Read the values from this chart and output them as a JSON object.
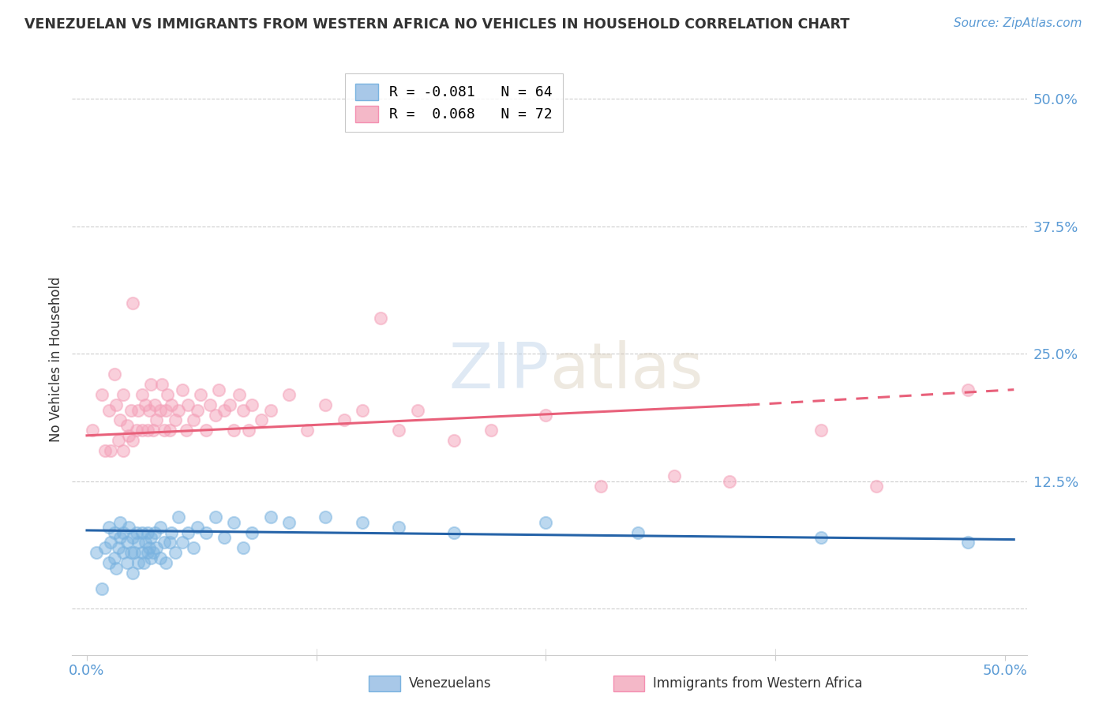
{
  "title": "VENEZUELAN VS IMMIGRANTS FROM WESTERN AFRICA NO VEHICLES IN HOUSEHOLD CORRELATION CHART",
  "source": "Source: ZipAtlas.com",
  "ylabel": "No Vehicles in Household",
  "ytick_labels": [
    "",
    "12.5%",
    "25.0%",
    "37.5%",
    "50.0%"
  ],
  "ytick_values": [
    0.0,
    0.125,
    0.25,
    0.375,
    0.5
  ],
  "xlim": [
    -0.008,
    0.512
  ],
  "ylim": [
    -0.045,
    0.535
  ],
  "watermark_text": "ZIPatlas",
  "blue_scatter_color": "#7ab3e0",
  "pink_scatter_color": "#f4a0b8",
  "blue_line_color": "#2563a8",
  "pink_line_color": "#e8607a",
  "blue_legend_color": "#a8c8e8",
  "pink_legend_color": "#f4b8c8",
  "legend_R1": "R = -0.081",
  "legend_N1": "N = 64",
  "legend_R2": "R =  0.068",
  "legend_N2": "N = 72",
  "venezuelan_scatter_x": [
    0.005,
    0.008,
    0.01,
    0.012,
    0.012,
    0.013,
    0.015,
    0.015,
    0.016,
    0.017,
    0.018,
    0.018,
    0.02,
    0.02,
    0.022,
    0.022,
    0.023,
    0.024,
    0.025,
    0.025,
    0.026,
    0.027,
    0.028,
    0.028,
    0.03,
    0.03,
    0.031,
    0.032,
    0.033,
    0.033,
    0.034,
    0.035,
    0.035,
    0.036,
    0.037,
    0.038,
    0.04,
    0.04,
    0.042,
    0.043,
    0.045,
    0.046,
    0.048,
    0.05,
    0.052,
    0.055,
    0.058,
    0.06,
    0.065,
    0.07,
    0.075,
    0.08,
    0.085,
    0.09,
    0.1,
    0.11,
    0.13,
    0.15,
    0.17,
    0.2,
    0.25,
    0.3,
    0.4,
    0.48
  ],
  "venezuelan_scatter_y": [
    0.055,
    0.02,
    0.06,
    0.045,
    0.08,
    0.065,
    0.05,
    0.075,
    0.04,
    0.06,
    0.07,
    0.085,
    0.055,
    0.075,
    0.045,
    0.065,
    0.08,
    0.055,
    0.035,
    0.07,
    0.055,
    0.075,
    0.045,
    0.065,
    0.055,
    0.075,
    0.045,
    0.065,
    0.055,
    0.075,
    0.06,
    0.05,
    0.07,
    0.055,
    0.075,
    0.06,
    0.05,
    0.08,
    0.065,
    0.045,
    0.065,
    0.075,
    0.055,
    0.09,
    0.065,
    0.075,
    0.06,
    0.08,
    0.075,
    0.09,
    0.07,
    0.085,
    0.06,
    0.075,
    0.09,
    0.085,
    0.09,
    0.085,
    0.08,
    0.075,
    0.085,
    0.075,
    0.07,
    0.065
  ],
  "western_africa_scatter_x": [
    0.003,
    0.008,
    0.01,
    0.012,
    0.013,
    0.015,
    0.016,
    0.017,
    0.018,
    0.02,
    0.02,
    0.022,
    0.023,
    0.024,
    0.025,
    0.025,
    0.027,
    0.028,
    0.03,
    0.03,
    0.032,
    0.033,
    0.034,
    0.035,
    0.036,
    0.037,
    0.038,
    0.04,
    0.041,
    0.042,
    0.043,
    0.044,
    0.045,
    0.046,
    0.048,
    0.05,
    0.052,
    0.054,
    0.055,
    0.058,
    0.06,
    0.062,
    0.065,
    0.067,
    0.07,
    0.072,
    0.075,
    0.078,
    0.08,
    0.083,
    0.085,
    0.088,
    0.09,
    0.095,
    0.1,
    0.11,
    0.12,
    0.13,
    0.14,
    0.15,
    0.16,
    0.17,
    0.18,
    0.2,
    0.22,
    0.25,
    0.28,
    0.32,
    0.35,
    0.4,
    0.43,
    0.48
  ],
  "western_africa_scatter_y": [
    0.175,
    0.21,
    0.155,
    0.195,
    0.155,
    0.23,
    0.2,
    0.165,
    0.185,
    0.155,
    0.21,
    0.18,
    0.17,
    0.195,
    0.3,
    0.165,
    0.175,
    0.195,
    0.175,
    0.21,
    0.2,
    0.175,
    0.195,
    0.22,
    0.175,
    0.2,
    0.185,
    0.195,
    0.22,
    0.175,
    0.195,
    0.21,
    0.175,
    0.2,
    0.185,
    0.195,
    0.215,
    0.175,
    0.2,
    0.185,
    0.195,
    0.21,
    0.175,
    0.2,
    0.19,
    0.215,
    0.195,
    0.2,
    0.175,
    0.21,
    0.195,
    0.175,
    0.2,
    0.185,
    0.195,
    0.21,
    0.175,
    0.2,
    0.185,
    0.195,
    0.285,
    0.175,
    0.195,
    0.165,
    0.175,
    0.19,
    0.12,
    0.13,
    0.125,
    0.175,
    0.12,
    0.215
  ],
  "pink_line_x_start": 0.0,
  "pink_line_x_solid_end": 0.36,
  "pink_line_x_end": 0.505,
  "pink_line_y_start": 0.17,
  "pink_line_y_solid_end": 0.2,
  "pink_line_y_end": 0.215,
  "blue_line_x_start": 0.0,
  "blue_line_x_end": 0.505,
  "blue_line_y_start": 0.077,
  "blue_line_y_end": 0.068
}
